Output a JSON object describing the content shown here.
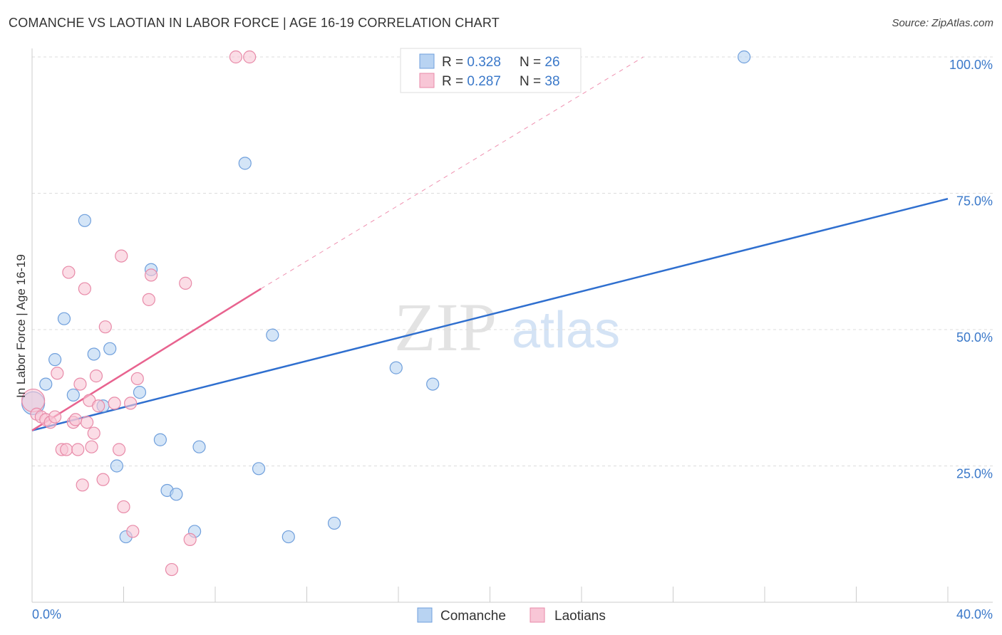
{
  "title": "COMANCHE VS LAOTIAN IN LABOR FORCE | AGE 16-19 CORRELATION CHART",
  "source": "Source: ZipAtlas.com",
  "watermark": {
    "zip": "ZIP",
    "atlas": "atlas"
  },
  "colors": {
    "blue_fill": "#b8d3f2",
    "blue_stroke": "#6f9fdc",
    "blue_line": "#2f6fcf",
    "pink_fill": "#f8c6d6",
    "pink_stroke": "#e88aa8",
    "pink_line": "#e8638f",
    "axis_label": "#3a78c9",
    "grid": "#dcdcdc"
  },
  "legend": {
    "items": [
      {
        "r_label": "R = ",
        "r_value": "0.328",
        "n_label": "N = ",
        "n_value": "26",
        "color": "blue"
      },
      {
        "r_label": "R = ",
        "r_value": "0.287",
        "n_label": "N = ",
        "n_value": "38",
        "color": "pink"
      }
    ]
  },
  "bottom_legend": [
    {
      "label": "Comanche",
      "color": "blue"
    },
    {
      "label": "Laotians",
      "color": "pink"
    }
  ],
  "chart_data": {
    "type": "scatter",
    "title": "COMANCHE VS LAOTIAN IN LABOR FORCE | AGE 16-19 CORRELATION CHART",
    "xlabel": "",
    "ylabel": "In Labor Force | Age 16-19",
    "xlim": [
      0,
      40
    ],
    "ylim": [
      0,
      100
    ],
    "x_tick_labels": [
      "0.0%",
      "40.0%"
    ],
    "y_tick_values": [
      25,
      50,
      75,
      100
    ],
    "y_tick_labels": [
      "25.0%",
      "50.0%",
      "75.0%",
      "100.0%"
    ],
    "grid": true,
    "series": [
      {
        "name": "Comanche",
        "color": "blue",
        "points": [
          [
            0.05,
            36.5
          ],
          [
            0.6,
            40.0
          ],
          [
            1.0,
            44.5
          ],
          [
            1.4,
            52.0
          ],
          [
            1.8,
            38.0
          ],
          [
            2.3,
            70.0
          ],
          [
            2.7,
            45.5
          ],
          [
            3.1,
            36.0
          ],
          [
            3.4,
            46.5
          ],
          [
            3.7,
            25.0
          ],
          [
            4.1,
            12.0
          ],
          [
            4.7,
            38.5
          ],
          [
            5.2,
            61.0
          ],
          [
            5.6,
            29.8
          ],
          [
            5.9,
            20.5
          ],
          [
            6.3,
            19.8
          ],
          [
            7.1,
            13.0
          ],
          [
            7.3,
            28.5
          ],
          [
            9.3,
            80.5
          ],
          [
            9.9,
            24.5
          ],
          [
            10.5,
            49.0
          ],
          [
            11.2,
            12.0
          ],
          [
            13.2,
            14.5
          ],
          [
            15.9,
            43.0
          ],
          [
            17.5,
            40.0
          ],
          [
            31.1,
            100.0
          ]
        ],
        "trend": {
          "x": [
            0,
            40
          ],
          "y": [
            31.5,
            74.0
          ]
        }
      },
      {
        "name": "Laotians",
        "color": "pink",
        "points": [
          [
            0.05,
            37.0
          ],
          [
            0.2,
            34.5
          ],
          [
            0.4,
            34.0
          ],
          [
            0.6,
            33.5
          ],
          [
            0.8,
            33.0
          ],
          [
            1.0,
            34.0
          ],
          [
            1.1,
            42.0
          ],
          [
            1.3,
            28.0
          ],
          [
            1.5,
            28.0
          ],
          [
            1.6,
            60.5
          ],
          [
            1.8,
            33.0
          ],
          [
            2.1,
            40.0
          ],
          [
            2.2,
            21.5
          ],
          [
            2.3,
            57.5
          ],
          [
            2.4,
            33.0
          ],
          [
            2.5,
            37.0
          ],
          [
            2.6,
            28.5
          ],
          [
            2.7,
            31.0
          ],
          [
            2.8,
            41.5
          ],
          [
            2.9,
            36.0
          ],
          [
            3.1,
            22.5
          ],
          [
            3.2,
            50.5
          ],
          [
            3.6,
            36.5
          ],
          [
            3.8,
            28.0
          ],
          [
            3.9,
            63.5
          ],
          [
            4.0,
            17.5
          ],
          [
            4.4,
            13.0
          ],
          [
            4.6,
            41.0
          ],
          [
            5.1,
            55.5
          ],
          [
            5.2,
            60.0
          ],
          [
            6.1,
            6.0
          ],
          [
            6.7,
            58.5
          ],
          [
            6.9,
            11.5
          ],
          [
            8.9,
            100.0
          ],
          [
            9.5,
            100.0
          ],
          [
            1.9,
            33.5
          ],
          [
            2.0,
            28.0
          ],
          [
            4.3,
            36.5
          ]
        ],
        "trend": {
          "x": [
            0,
            10
          ],
          "y": [
            31.5,
            57.5
          ]
        },
        "trend_extension": {
          "x": [
            10,
            26.7
          ],
          "y": [
            57.5,
            100.0
          ]
        }
      }
    ]
  }
}
